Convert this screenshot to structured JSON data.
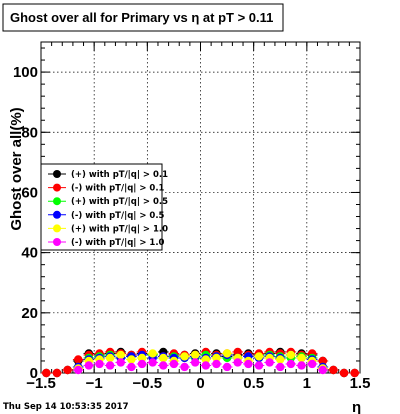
{
  "chart_data": {
    "type": "scatter",
    "title": "Ghost over all for Primary vs   η at pT > 0.11",
    "xlabel": "η",
    "ylabel": "Ghost over all(%)",
    "xlim": [
      -1.5,
      1.5
    ],
    "ylim": [
      0,
      110
    ],
    "x_ticks": [
      "−1.5",
      "−1",
      "−0.5",
      "0",
      "0.5",
      "1",
      "1.5"
    ],
    "y_ticks": [
      "0",
      "20",
      "40",
      "60",
      "80",
      "100"
    ],
    "grid": true,
    "legend_position": "middle-left",
    "series": [
      {
        "name": "(+) with pT/|q| > 0.1",
        "color": "#000000",
        "x": [
          -1.45,
          -1.35,
          -1.25,
          -1.15,
          -1.05,
          -0.95,
          -0.85,
          -0.75,
          -0.65,
          -0.55,
          -0.45,
          -0.35,
          -0.25,
          -0.15,
          -0.05,
          0.05,
          0.15,
          0.25,
          0.35,
          0.45,
          0.55,
          0.65,
          0.75,
          0.85,
          0.95,
          1.05,
          1.15,
          1.25,
          1.35,
          1.45
        ],
        "y": [
          0,
          0,
          1,
          4,
          6.5,
          6,
          6.5,
          7,
          6,
          6.5,
          6,
          7,
          6,
          6,
          6.5,
          6,
          6.5,
          5.5,
          6,
          6.5,
          6,
          6.5,
          7,
          6,
          6.5,
          6,
          4,
          1,
          0,
          0
        ]
      },
      {
        "name": "(-) with pT/|q| > 0.1",
        "color": "#ff0000",
        "x": [
          -1.45,
          -1.35,
          -1.25,
          -1.15,
          -1.05,
          -0.95,
          -0.85,
          -0.75,
          -0.65,
          -0.55,
          -0.45,
          -0.35,
          -0.25,
          -0.15,
          -0.05,
          0.05,
          0.15,
          0.25,
          0.35,
          0.45,
          0.55,
          0.65,
          0.75,
          0.85,
          0.95,
          1.05,
          1.15,
          1.25,
          1.35,
          1.45
        ],
        "y": [
          0,
          0,
          1,
          4.5,
          6,
          6.5,
          7,
          6.5,
          6,
          7,
          6,
          5.5,
          6.5,
          6,
          6,
          7,
          6,
          6.5,
          7,
          6,
          6.5,
          7,
          6.5,
          7,
          6,
          6.5,
          4,
          1,
          0,
          0
        ]
      },
      {
        "name": "(+) with pT/|q| > 0.5",
        "color": "#00ff00",
        "x": [
          -1.15,
          -1.05,
          -0.95,
          -0.85,
          -0.75,
          -0.65,
          -0.55,
          -0.45,
          -0.35,
          -0.25,
          -0.15,
          -0.05,
          0.05,
          0.15,
          0.25,
          0.35,
          0.45,
          0.55,
          0.65,
          0.75,
          0.85,
          0.95,
          1.05,
          1.15
        ],
        "y": [
          2,
          5,
          5.5,
          6,
          5,
          5.5,
          5,
          6,
          5,
          5.5,
          5,
          5,
          6,
          5.5,
          5,
          5,
          5.5,
          5,
          6,
          5.5,
          5,
          5.5,
          5,
          2
        ]
      },
      {
        "name": "(-) with pT/|q| > 0.5",
        "color": "#0000ff",
        "x": [
          -1.15,
          -1.05,
          -0.95,
          -0.85,
          -0.75,
          -0.65,
          -0.55,
          -0.45,
          -0.35,
          -0.25,
          -0.15,
          -0.05,
          0.05,
          0.15,
          0.25,
          0.35,
          0.45,
          0.55,
          0.65,
          0.75,
          0.85,
          0.95,
          1.05,
          1.15
        ],
        "y": [
          2,
          4.5,
          5,
          5.5,
          5,
          5.5,
          6,
          5,
          5.5,
          5,
          5,
          5.5,
          5,
          5.5,
          6,
          5,
          5.5,
          5,
          5.5,
          5,
          6,
          5,
          4.5,
          2
        ]
      },
      {
        "name": "(+) with pT/|q| > 1.0",
        "color": "#ffff00",
        "x": [
          -1.15,
          -1.05,
          -0.95,
          -0.85,
          -0.75,
          -0.65,
          -0.55,
          -0.45,
          -0.35,
          -0.25,
          -0.15,
          -0.05,
          0.05,
          0.15,
          0.25,
          0.35,
          0.45,
          0.55,
          0.65,
          0.75,
          0.85,
          0.95,
          1.05,
          1.15
        ],
        "y": [
          1.5,
          4,
          4.5,
          5,
          6,
          4.5,
          5,
          6.5,
          5,
          4,
          5.5,
          6,
          4.5,
          5,
          6.5,
          5,
          4,
          5.5,
          5,
          4.5,
          6,
          5,
          4,
          1.5
        ]
      },
      {
        "name": "(-) with pT/|q| > 1.0",
        "color": "#ff00ff",
        "x": [
          -1.15,
          -1.05,
          -0.95,
          -0.85,
          -0.75,
          -0.65,
          -0.55,
          -0.45,
          -0.35,
          -0.25,
          -0.15,
          -0.05,
          0.05,
          0.15,
          0.25,
          0.35,
          0.45,
          0.55,
          0.65,
          0.75,
          0.85,
          0.95,
          1.05,
          1.15
        ],
        "y": [
          1,
          2.5,
          3,
          2.5,
          3.5,
          2,
          3,
          3.5,
          2.5,
          3,
          2,
          3.5,
          2.5,
          3,
          2,
          3.5,
          3,
          2.5,
          3.5,
          2,
          3,
          2.5,
          3,
          1
        ]
      }
    ]
  },
  "footer": {
    "timestamp": "Thu Sep 14 10:53:35 2017"
  }
}
